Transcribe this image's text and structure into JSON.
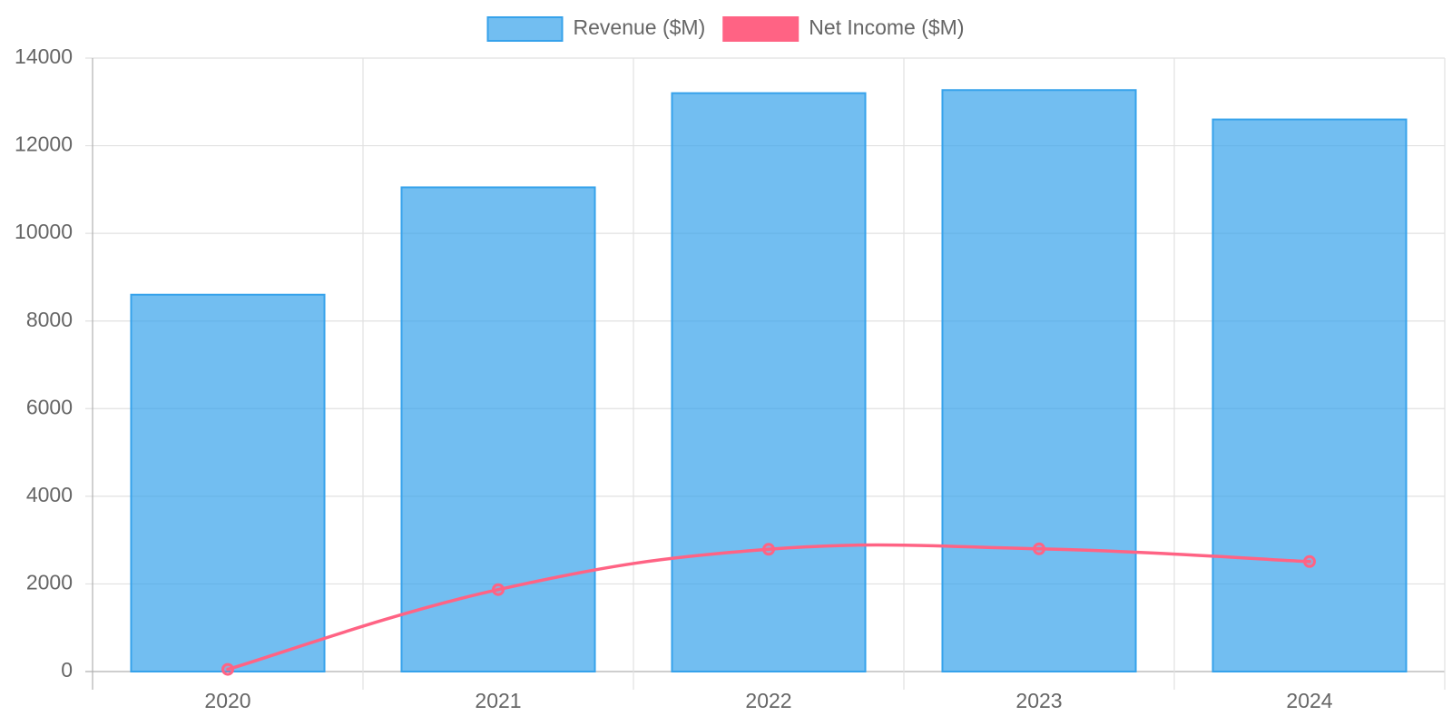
{
  "chart_data": {
    "type": "bar",
    "categories": [
      "2020",
      "2021",
      "2022",
      "2023",
      "2024"
    ],
    "series": [
      {
        "name": "Revenue ($M)",
        "type": "bar",
        "values": [
          8600,
          11050,
          13200,
          13270,
          12600
        ],
        "color": "#36A2EB"
      },
      {
        "name": "Net Income ($M)",
        "type": "line",
        "values": [
          50,
          1870,
          2790,
          2800,
          2510
        ],
        "color": "#FF6384"
      }
    ],
    "ylim": [
      0,
      14000
    ],
    "yticks": [
      "0",
      "2000",
      "4000",
      "6000",
      "8000",
      "10000",
      "12000",
      "14000"
    ],
    "grid": true,
    "legend_position": "top"
  }
}
